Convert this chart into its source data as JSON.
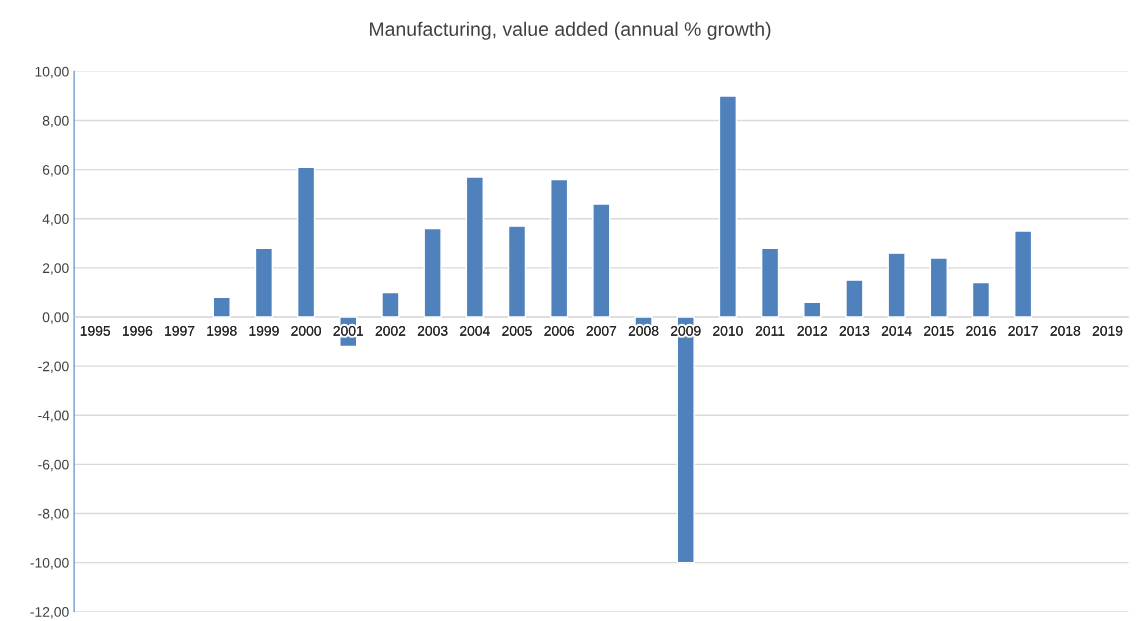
{
  "chart_data": {
    "type": "bar",
    "title": "Manufacturing, value added (annual % growth)",
    "categories": [
      "1995",
      "1996",
      "1997",
      "1998",
      "1999",
      "2000",
      "2001",
      "2002",
      "2003",
      "2004",
      "2005",
      "2006",
      "2007",
      "2008",
      "2009",
      "2010",
      "2011",
      "2012",
      "2013",
      "2014",
      "2015",
      "2016",
      "2017",
      "2018",
      "2019"
    ],
    "values": [
      null,
      null,
      null,
      0.8,
      2.8,
      6.1,
      -1.2,
      1.0,
      3.6,
      5.7,
      3.7,
      5.6,
      4.6,
      -0.4,
      -10.0,
      9.0,
      2.8,
      0.6,
      1.5,
      2.6,
      2.4,
      1.4,
      3.5,
      null,
      null
    ],
    "color": "#4f81bd",
    "ylim": [
      -12,
      10
    ],
    "yticks": [
      {
        "value": -12,
        "label": "-12,00"
      },
      {
        "value": -10,
        "label": "-10,00"
      },
      {
        "value": -8,
        "label": "-8,00"
      },
      {
        "value": -6,
        "label": "-6,00"
      },
      {
        "value": -4,
        "label": "-4,00"
      },
      {
        "value": -2,
        "label": "-2,00"
      },
      {
        "value": 0,
        "label": "0,00"
      },
      {
        "value": 2,
        "label": "2,00"
      },
      {
        "value": 4,
        "label": "4,00"
      },
      {
        "value": 6,
        "label": "6,00"
      },
      {
        "value": 8,
        "label": "8,00"
      },
      {
        "value": 10,
        "label": "10,00"
      }
    ],
    "grid": "y",
    "legend": false
  }
}
